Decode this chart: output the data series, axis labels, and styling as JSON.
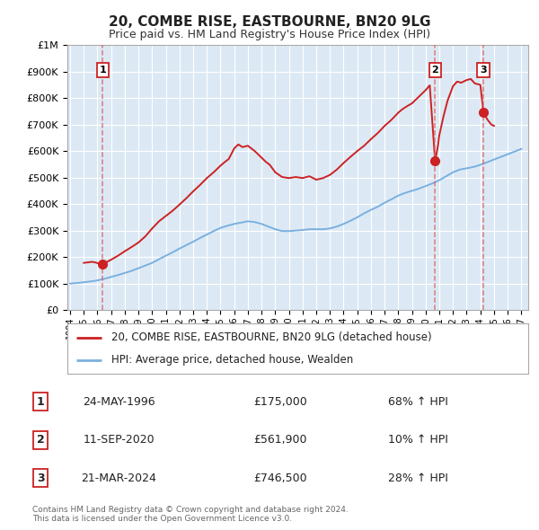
{
  "title": "20, COMBE RISE, EASTBOURNE, BN20 9LG",
  "subtitle": "Price paid vs. HM Land Registry's House Price Index (HPI)",
  "ylim": [
    0,
    1000000
  ],
  "yticks": [
    0,
    100000,
    200000,
    300000,
    400000,
    500000,
    600000,
    700000,
    800000,
    900000,
    1000000
  ],
  "ytick_labels": [
    "£0",
    "£100K",
    "£200K",
    "£300K",
    "£400K",
    "£500K",
    "£600K",
    "£700K",
    "£800K",
    "£900K",
    "£1M"
  ],
  "xlim_start": 1993.8,
  "xlim_end": 2027.5,
  "background_color": "#ffffff",
  "plot_bg_color": "#dce9f5",
  "grid_color": "#ffffff",
  "sale_dates": [
    1996.38,
    2020.69,
    2024.22
  ],
  "sale_prices": [
    175000,
    561900,
    746500
  ],
  "sale_labels": [
    "1",
    "2",
    "3"
  ],
  "sale_date_strs": [
    "24-MAY-1996",
    "11-SEP-2020",
    "21-MAR-2024"
  ],
  "sale_price_strs": [
    "£175,000",
    "£561,900",
    "£746,500"
  ],
  "sale_hpi_strs": [
    "68% ↑ HPI",
    "10% ↑ HPI",
    "28% ↑ HPI"
  ],
  "red_line_color": "#cc2222",
  "blue_line_color": "#7ab0e0",
  "dashed_line_color": "#dd6666",
  "legend_house": "20, COMBE RISE, EASTBOURNE, BN20 9LG (detached house)",
  "legend_hpi": "HPI: Average price, detached house, Wealden",
  "footer1": "Contains HM Land Registry data © Crown copyright and database right 2024.",
  "footer2": "This data is licensed under the Open Government Licence v3.0.",
  "hpi_x": [
    1994,
    1994.5,
    1995,
    1995.5,
    1996,
    1996.5,
    1997,
    1997.5,
    1998,
    1998.5,
    1999,
    1999.5,
    2000,
    2000.5,
    2001,
    2001.5,
    2002,
    2002.5,
    2003,
    2003.5,
    2004,
    2004.5,
    2005,
    2005.5,
    2006,
    2006.5,
    2007,
    2007.5,
    2008,
    2008.5,
    2009,
    2009.5,
    2010,
    2010.5,
    2011,
    2011.5,
    2012,
    2012.5,
    2013,
    2013.5,
    2014,
    2014.5,
    2015,
    2015.5,
    2016,
    2016.5,
    2017,
    2017.5,
    2018,
    2018.5,
    2019,
    2019.5,
    2020,
    2020.5,
    2021,
    2021.5,
    2022,
    2022.5,
    2023,
    2023.5,
    2024,
    2024.5,
    2025,
    2025.5,
    2026,
    2026.5,
    2027
  ],
  "hpi_y": [
    100000,
    102000,
    105000,
    108000,
    112000,
    118000,
    125000,
    132000,
    140000,
    148000,
    158000,
    168000,
    178000,
    192000,
    205000,
    218000,
    232000,
    245000,
    258000,
    272000,
    285000,
    298000,
    310000,
    318000,
    325000,
    330000,
    335000,
    332000,
    325000,
    315000,
    305000,
    298000,
    298000,
    300000,
    302000,
    305000,
    305000,
    305000,
    308000,
    315000,
    325000,
    337000,
    350000,
    365000,
    378000,
    390000,
    405000,
    418000,
    432000,
    442000,
    450000,
    458000,
    468000,
    478000,
    490000,
    505000,
    520000,
    530000,
    535000,
    540000,
    548000,
    558000,
    568000,
    578000,
    588000,
    598000,
    608000
  ],
  "red_x": [
    1995.0,
    1995.3,
    1995.6,
    1995.9,
    1996.0,
    1996.38,
    1996.7,
    1997.0,
    1997.5,
    1998.0,
    1998.5,
    1999.0,
    1999.5,
    2000.0,
    2000.5,
    2001.0,
    2001.5,
    2002.0,
    2002.5,
    2003.0,
    2003.5,
    2004.0,
    2004.5,
    2005.0,
    2005.3,
    2005.6,
    2006.0,
    2006.3,
    2006.6,
    2007.0,
    2007.5,
    2008.0,
    2008.3,
    2008.6,
    2009.0,
    2009.5,
    2010.0,
    2010.5,
    2011.0,
    2011.5,
    2012.0,
    2012.5,
    2013.0,
    2013.5,
    2014.0,
    2014.5,
    2015.0,
    2015.5,
    2016.0,
    2016.5,
    2017.0,
    2017.5,
    2018.0,
    2018.3,
    2018.6,
    2019.0,
    2019.5,
    2020.0,
    2020.3,
    2020.69,
    2020.9,
    2021.0,
    2021.3,
    2021.6,
    2022.0,
    2022.3,
    2022.6,
    2023.0,
    2023.3,
    2023.6,
    2024.0,
    2024.22,
    2024.5,
    2024.8,
    2025.0
  ],
  "red_y": [
    178000,
    180000,
    182000,
    179000,
    177000,
    175000,
    182000,
    190000,
    205000,
    222000,
    238000,
    255000,
    278000,
    308000,
    335000,
    355000,
    375000,
    398000,
    422000,
    448000,
    472000,
    498000,
    520000,
    545000,
    558000,
    570000,
    610000,
    625000,
    615000,
    620000,
    600000,
    575000,
    560000,
    548000,
    520000,
    502000,
    498000,
    502000,
    498000,
    505000,
    492000,
    498000,
    510000,
    530000,
    555000,
    578000,
    600000,
    620000,
    645000,
    668000,
    695000,
    718000,
    745000,
    758000,
    768000,
    780000,
    805000,
    830000,
    848000,
    561900,
    620000,
    660000,
    730000,
    790000,
    845000,
    862000,
    858000,
    868000,
    872000,
    855000,
    850000,
    746500,
    720000,
    700000,
    695000
  ]
}
